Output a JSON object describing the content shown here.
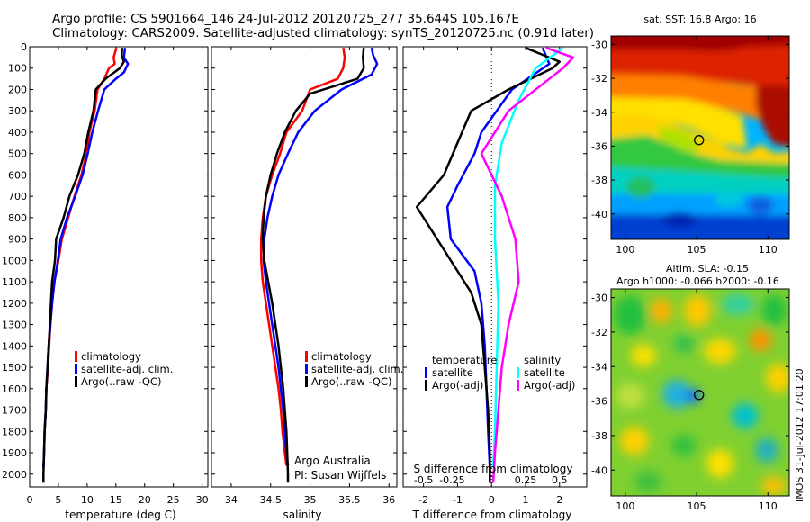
{
  "header": {
    "line1": "Argo profile: CS 5901664_146 24-Jul-2012 20120725_277 35.644S 105.167E",
    "line2": "Climatology: CARS2009. Satellite-adjusted climatology: synTS_20120725.nc (0.91d later)"
  },
  "credit": {
    "line1": "Argo Australia",
    "line2": "PI: Susan Wijffels"
  },
  "stamp": "IMOS 31-Jul-2012 17:01:20",
  "colors": {
    "climatology": "#ff0000",
    "satellite": "#0000ff",
    "argo": "#000000",
    "sal_satellite": "#00ffff",
    "sal_argo": "#ff00ff"
  },
  "chart_data": [
    {
      "type": "line",
      "id": "temperature",
      "xlabel": "temperature (deg C)",
      "ylabel": "",
      "xlim": [
        0,
        31
      ],
      "ylim": [
        2060,
        0
      ],
      "x_ticks": [
        0,
        5,
        10,
        15,
        20,
        25,
        30
      ],
      "y_ticks": [
        0,
        100,
        200,
        300,
        400,
        500,
        600,
        700,
        800,
        900,
        1000,
        1100,
        1200,
        1300,
        1400,
        1500,
        1600,
        1700,
        1800,
        1900,
        2000
      ],
      "legend": [
        "climatology",
        "satellite-adj. clim.",
        "Argo(..raw -QC)"
      ],
      "series": [
        {
          "name": "climatology",
          "color": "#ff0000",
          "points": [
            [
              15.1,
              5
            ],
            [
              14.6,
              50
            ],
            [
              14.8,
              80
            ],
            [
              13.8,
              100
            ],
            [
              13.0,
              150
            ],
            [
              11.8,
              200
            ],
            [
              11.3,
              300
            ],
            [
              10.4,
              400
            ],
            [
              9.9,
              500
            ],
            [
              9.0,
              600
            ],
            [
              7.8,
              700
            ],
            [
              6.7,
              800
            ],
            [
              5.6,
              900
            ],
            [
              5.0,
              1000
            ],
            [
              4.3,
              1100
            ],
            [
              3.9,
              1200
            ],
            [
              3.6,
              1300
            ],
            [
              3.4,
              1400
            ],
            [
              3.2,
              1500
            ],
            [
              2.9,
              1600
            ],
            [
              2.8,
              1700
            ],
            [
              2.6,
              1800
            ],
            [
              2.5,
              1900
            ],
            [
              2.4,
              1970
            ]
          ]
        },
        {
          "name": "satellite-adj. clim.",
          "color": "#0000ff",
          "points": [
            [
              16.6,
              5
            ],
            [
              16.4,
              50
            ],
            [
              17.1,
              80
            ],
            [
              16.4,
              120
            ],
            [
              15.0,
              150
            ],
            [
              13.0,
              200
            ],
            [
              11.9,
              300
            ],
            [
              10.9,
              400
            ],
            [
              10.1,
              500
            ],
            [
              9.2,
              600
            ],
            [
              7.9,
              700
            ],
            [
              6.5,
              800
            ],
            [
              5.4,
              900
            ],
            [
              4.9,
              1000
            ],
            [
              4.3,
              1100
            ],
            [
              3.9,
              1200
            ],
            [
              3.6,
              1300
            ],
            [
              3.3,
              1400
            ],
            [
              3.1,
              1500
            ],
            [
              2.9,
              1600
            ],
            [
              2.8,
              1700
            ],
            [
              2.6,
              1800
            ],
            [
              2.5,
              1900
            ],
            [
              2.4,
              1970
            ]
          ]
        },
        {
          "name": "Argo(..raw -QC)",
          "color": "#000000",
          "points": [
            [
              16.1,
              5
            ],
            [
              16.0,
              40
            ],
            [
              16.4,
              70
            ],
            [
              15.7,
              100
            ],
            [
              13.2,
              150
            ],
            [
              11.5,
              200
            ],
            [
              11.1,
              300
            ],
            [
              10.2,
              400
            ],
            [
              9.5,
              500
            ],
            [
              8.4,
              600
            ],
            [
              6.9,
              700
            ],
            [
              5.9,
              800
            ],
            [
              4.6,
              900
            ],
            [
              4.4,
              1000
            ],
            [
              3.9,
              1100
            ],
            [
              3.7,
              1200
            ],
            [
              3.5,
              1300
            ],
            [
              3.3,
              1400
            ],
            [
              3.1,
              1500
            ],
            [
              2.9,
              1600
            ],
            [
              2.8,
              1700
            ],
            [
              2.6,
              1800
            ],
            [
              2.5,
              1900
            ],
            [
              2.4,
              2000
            ],
            [
              2.4,
              2040
            ]
          ]
        }
      ]
    },
    {
      "type": "line",
      "id": "salinity",
      "xlabel": "salinity",
      "xlim": [
        33.75,
        36.1
      ],
      "ylim": [
        2060,
        0
      ],
      "x_ticks": [
        34,
        34.5,
        35,
        35.5,
        36
      ],
      "legend": [
        "climatology",
        "satellite-adj. clim.",
        "Argo(..raw -QC)"
      ],
      "series": [
        {
          "name": "climatology",
          "color": "#ff0000",
          "points": [
            [
              35.42,
              5
            ],
            [
              35.44,
              50
            ],
            [
              35.42,
              100
            ],
            [
              35.35,
              150
            ],
            [
              35.0,
              200
            ],
            [
              34.9,
              300
            ],
            [
              34.7,
              400
            ],
            [
              34.62,
              500
            ],
            [
              34.52,
              600
            ],
            [
              34.44,
              700
            ],
            [
              34.4,
              800
            ],
            [
              34.38,
              900
            ],
            [
              34.38,
              1000
            ],
            [
              34.4,
              1100
            ],
            [
              34.44,
              1200
            ],
            [
              34.48,
              1300
            ],
            [
              34.52,
              1400
            ],
            [
              34.56,
              1500
            ],
            [
              34.6,
              1600
            ],
            [
              34.63,
              1700
            ],
            [
              34.65,
              1800
            ],
            [
              34.68,
              1900
            ],
            [
              34.7,
              1960
            ]
          ]
        },
        {
          "name": "satellite-adj. clim.",
          "color": "#0000ff",
          "points": [
            [
              35.78,
              5
            ],
            [
              35.8,
              40
            ],
            [
              35.85,
              80
            ],
            [
              35.78,
              130
            ],
            [
              35.4,
              200
            ],
            [
              35.06,
              300
            ],
            [
              34.85,
              400
            ],
            [
              34.72,
              500
            ],
            [
              34.6,
              600
            ],
            [
              34.52,
              700
            ],
            [
              34.46,
              800
            ],
            [
              34.42,
              900
            ],
            [
              34.41,
              1000
            ],
            [
              34.44,
              1100
            ],
            [
              34.48,
              1200
            ],
            [
              34.52,
              1300
            ],
            [
              34.56,
              1400
            ],
            [
              34.6,
              1500
            ],
            [
              34.63,
              1600
            ],
            [
              34.66,
              1700
            ],
            [
              34.68,
              1800
            ],
            [
              34.7,
              1900
            ],
            [
              34.72,
              1960
            ]
          ]
        },
        {
          "name": "Argo(..raw -QC)",
          "color": "#000000",
          "points": [
            [
              35.68,
              5
            ],
            [
              35.67,
              50
            ],
            [
              35.68,
              100
            ],
            [
              35.6,
              150
            ],
            [
              35.0,
              220
            ],
            [
              34.82,
              300
            ],
            [
              34.68,
              400
            ],
            [
              34.58,
              500
            ],
            [
              34.5,
              600
            ],
            [
              34.44,
              700
            ],
            [
              34.41,
              800
            ],
            [
              34.4,
              900
            ],
            [
              34.42,
              1000
            ],
            [
              34.47,
              1100
            ],
            [
              34.52,
              1200
            ],
            [
              34.56,
              1300
            ],
            [
              34.6,
              1400
            ],
            [
              34.63,
              1500
            ],
            [
              34.66,
              1600
            ],
            [
              34.68,
              1700
            ],
            [
              34.7,
              1800
            ],
            [
              34.71,
              1900
            ],
            [
              34.72,
              2000
            ],
            [
              34.72,
              2040
            ]
          ]
        }
      ]
    },
    {
      "type": "line",
      "id": "difference",
      "xlabel": "T difference from climatology",
      "xlabel_top": "S difference from climatology",
      "xlim": [
        -2.6,
        2.8
      ],
      "ylim": [
        2060,
        0
      ],
      "x_ticks": [
        -2,
        -1,
        0,
        1,
        2
      ],
      "s_ticks": [
        "-0.5",
        "-0.25",
        "0",
        "0.25",
        "0.5"
      ],
      "legend_titles": [
        "temperature",
        "salinity"
      ],
      "legend": [
        "satellite",
        "Argo(-adj)",
        "satellite",
        "Argo(-adj)"
      ],
      "series": [
        {
          "name": "T satellite",
          "color": "#0000ff",
          "points": [
            [
              1.5,
              5
            ],
            [
              1.7,
              80
            ],
            [
              0.6,
              200
            ],
            [
              -0.3,
              400
            ],
            [
              -0.5,
              500
            ],
            [
              -1.0,
              650
            ],
            [
              -1.3,
              750
            ],
            [
              -1.2,
              900
            ],
            [
              -0.5,
              1050
            ],
            [
              -0.3,
              1200
            ],
            [
              -0.2,
              1400
            ],
            [
              -0.15,
              1600
            ],
            [
              -0.1,
              1800
            ],
            [
              -0.05,
              1970
            ]
          ]
        },
        {
          "name": "T Argo(-adj)",
          "color": "#000000",
          "points": [
            [
              1.0,
              5
            ],
            [
              2.0,
              70
            ],
            [
              1.8,
              100
            ],
            [
              0.5,
              200
            ],
            [
              -0.6,
              300
            ],
            [
              -1.0,
              450
            ],
            [
              -1.4,
              600
            ],
            [
              -2.2,
              750
            ],
            [
              -1.4,
              950
            ],
            [
              -0.6,
              1150
            ],
            [
              -0.3,
              1300
            ],
            [
              -0.2,
              1500
            ],
            [
              -0.1,
              1700
            ],
            [
              -0.05,
              1900
            ],
            [
              -0.05,
              2040
            ]
          ]
        },
        {
          "name": "S satellite",
          "color": "#00ffff",
          "points": [
            [
              2.1,
              5
            ],
            [
              1.3,
              100
            ],
            [
              0.8,
              250
            ],
            [
              0.3,
              450
            ],
            [
              0.1,
              650
            ],
            [
              0.1,
              900
            ],
            [
              0.2,
              1200
            ],
            [
              0.15,
              1500
            ],
            [
              0.1,
              1800
            ],
            [
              0.05,
              1970
            ]
          ]
        },
        {
          "name": "S Argo(-adj)",
          "color": "#ff00ff",
          "points": [
            [
              1.6,
              5
            ],
            [
              2.4,
              50
            ],
            [
              2.1,
              100
            ],
            [
              0.5,
              300
            ],
            [
              -0.3,
              500
            ],
            [
              0.3,
              700
            ],
            [
              0.7,
              900
            ],
            [
              0.8,
              1100
            ],
            [
              0.5,
              1300
            ],
            [
              0.3,
              1500
            ],
            [
              0.2,
              1700
            ],
            [
              0.1,
              1900
            ],
            [
              0.05,
              2040
            ]
          ]
        }
      ]
    },
    {
      "type": "heatmap",
      "id": "sst_map",
      "title": "sat. SST: 16.8 Argo: 16",
      "xlim": [
        99,
        111.5
      ],
      "ylim": [
        -41.5,
        -29.5
      ],
      "x_ticks": [
        100,
        105,
        110
      ],
      "y_ticks": [
        -30,
        -32,
        -34,
        -36,
        -38,
        -40
      ],
      "marker": [
        105.167,
        -35.644
      ]
    },
    {
      "type": "heatmap",
      "id": "sla_map",
      "title": "Altim. SLA: -0.15",
      "subtitle": "Argo h1000: -0.066 h2000: -0.16",
      "xlim": [
        99,
        111.5
      ],
      "ylim": [
        -41.5,
        -29.5
      ],
      "x_ticks": [
        100,
        105,
        110
      ],
      "y_ticks": [
        -30,
        -32,
        -34,
        -36,
        -38,
        -40
      ],
      "marker": [
        105.167,
        -35.644
      ]
    }
  ]
}
